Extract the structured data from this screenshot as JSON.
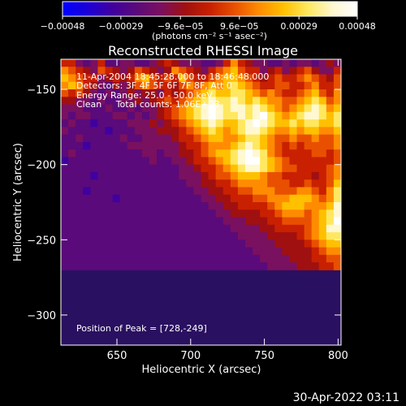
{
  "colorbar": {
    "tick_labels": [
      "−0.00048",
      "−0.00029",
      "−9.6e−05",
      "9.6e−05",
      "0.00029",
      "0.00048"
    ],
    "tick_values": [
      -0.00048,
      -0.00029,
      -9.6e-05,
      9.6e-05,
      0.00029,
      0.00048
    ],
    "range": [
      -0.00048,
      0.00048
    ],
    "units_label": "(photons cm⁻² s⁻¹ asec⁻²)",
    "palette": [
      "#0000ff",
      "#1a00d8",
      "#4000a0",
      "#5a0a7a",
      "#7a1060",
      "#a01010",
      "#c82000",
      "#e85000",
      "#ff8c00",
      "#ffc000",
      "#ffe860",
      "#fff8d0",
      "#ffffff"
    ]
  },
  "header": {
    "date_line": "11-Apr-2004 18:45:28.000 to 18:46:48.000",
    "detectors_line": "Detectors: 3F 4F 5F 6F 7F 8F, Att 0",
    "energy_line": "Energy Range: 25.0 - 50.0 keV",
    "clean_line": "Clean     Total counts: 1.06E+03"
  },
  "peak_label": "Position of Peak = [728,-249]",
  "footer_timestamp": "30-Apr-2022 03:11",
  "chart_data": {
    "type": "heatmap",
    "title": "Reconstructed RHESSI Image",
    "xlabel": "Heliocentric X (arcsec)",
    "ylabel": "Heliocentric Y (arcsec)",
    "xlim": [
      612,
      802
    ],
    "ylim": [
      -320,
      -130
    ],
    "xticks": [
      650,
      700,
      750,
      800
    ],
    "yticks": [
      -150,
      -200,
      -250,
      -300
    ],
    "peak": {
      "x": 728,
      "y": -249
    },
    "grid": false,
    "note_cells": "Pixel values below are coarse colormap indices (0 = darkest blue, 12 = white) read off the image.",
    "pixel_size_arcsec": 5,
    "rows_from_top": [
      [
        6,
        6,
        4,
        3,
        4,
        6,
        3,
        3,
        4,
        4,
        3,
        3,
        4,
        5,
        6,
        5,
        4,
        4,
        4,
        3,
        3,
        4,
        6,
        8,
        6,
        5,
        4,
        4,
        3,
        3,
        4,
        3,
        4,
        4,
        3,
        4,
        5,
        4
      ],
      [
        8,
        7,
        6,
        5,
        4,
        7,
        6,
        5,
        4,
        5,
        7,
        6,
        5,
        4,
        5,
        8,
        7,
        6,
        5,
        4,
        6,
        7,
        8,
        9,
        7,
        6,
        6,
        4,
        5,
        6,
        4,
        5,
        6,
        7,
        5,
        4,
        4,
        6
      ],
      [
        9,
        8,
        7,
        6,
        6,
        4,
        5,
        6,
        5,
        6,
        8,
        9,
        7,
        6,
        7,
        6,
        9,
        7,
        6,
        6,
        7,
        8,
        9,
        9,
        8,
        7,
        6,
        5,
        6,
        7,
        6,
        6,
        7,
        8,
        7,
        6,
        5,
        7
      ],
      [
        8,
        9,
        8,
        6,
        5,
        4,
        3,
        5,
        4,
        5,
        7,
        8,
        7,
        6,
        6,
        5,
        7,
        8,
        7,
        8,
        9,
        8,
        9,
        10,
        9,
        8,
        7,
        6,
        6,
        7,
        7,
        6,
        6,
        7,
        8,
        6,
        6,
        7
      ],
      [
        7,
        6,
        7,
        5,
        4,
        3,
        4,
        3,
        4,
        5,
        4,
        5,
        5,
        4,
        6,
        5,
        6,
        7,
        8,
        9,
        10,
        9,
        9,
        10,
        10,
        9,
        8,
        7,
        8,
        7,
        6,
        6,
        7,
        8,
        9,
        7,
        6,
        8
      ],
      [
        5,
        5,
        4,
        4,
        3,
        4,
        3,
        3,
        4,
        4,
        5,
        4,
        5,
        6,
        7,
        6,
        7,
        8,
        9,
        10,
        11,
        10,
        10,
        11,
        10,
        9,
        10,
        9,
        8,
        8,
        7,
        7,
        8,
        9,
        10,
        9,
        7,
        8
      ],
      [
        4,
        4,
        4,
        3,
        3,
        3,
        4,
        3,
        3,
        4,
        3,
        4,
        4,
        5,
        6,
        7,
        8,
        9,
        10,
        11,
        12,
        11,
        10,
        11,
        11,
        10,
        11,
        10,
        9,
        8,
        7,
        8,
        9,
        10,
        11,
        10,
        8,
        9
      ],
      [
        4,
        3,
        4,
        4,
        3,
        3,
        3,
        4,
        4,
        3,
        4,
        3,
        4,
        5,
        6,
        7,
        8,
        9,
        10,
        11,
        12,
        11,
        10,
        10,
        11,
        10,
        11,
        12,
        10,
        9,
        8,
        9,
        10,
        11,
        11,
        10,
        9,
        10
      ],
      [
        3,
        4,
        3,
        3,
        2,
        3,
        3,
        3,
        3,
        4,
        4,
        4,
        5,
        4,
        5,
        6,
        7,
        8,
        9,
        10,
        11,
        10,
        9,
        9,
        10,
        11,
        12,
        11,
        10,
        9,
        9,
        10,
        9,
        10,
        10,
        9,
        9,
        10
      ],
      [
        4,
        3,
        3,
        3,
        3,
        3,
        2,
        3,
        3,
        3,
        4,
        4,
        4,
        5,
        5,
        5,
        6,
        7,
        8,
        9,
        10,
        9,
        8,
        9,
        10,
        11,
        11,
        10,
        9,
        8,
        8,
        9,
        8,
        9,
        9,
        8,
        8,
        9
      ],
      [
        3,
        3,
        4,
        3,
        3,
        3,
        3,
        3,
        4,
        3,
        3,
        4,
        4,
        4,
        4,
        5,
        6,
        6,
        7,
        8,
        9,
        9,
        8,
        8,
        9,
        10,
        10,
        9,
        8,
        7,
        7,
        8,
        7,
        7,
        8,
        7,
        7,
        8
      ],
      [
        3,
        3,
        3,
        2,
        3,
        3,
        3,
        3,
        3,
        4,
        4,
        4,
        4,
        4,
        4,
        4,
        5,
        6,
        6,
        7,
        8,
        8,
        8,
        9,
        10,
        11,
        10,
        9,
        8,
        7,
        6,
        7,
        6,
        7,
        7,
        7,
        7,
        8
      ],
      [
        3,
        4,
        3,
        3,
        3,
        3,
        3,
        3,
        3,
        3,
        3,
        4,
        4,
        3,
        4,
        4,
        5,
        5,
        6,
        7,
        8,
        9,
        9,
        10,
        11,
        12,
        11,
        10,
        8,
        7,
        6,
        6,
        6,
        6,
        7,
        7,
        6,
        7
      ],
      [
        2,
        3,
        3,
        3,
        3,
        3,
        3,
        3,
        3,
        3,
        3,
        3,
        4,
        3,
        3,
        4,
        4,
        5,
        6,
        6,
        7,
        8,
        9,
        10,
        11,
        12,
        12,
        10,
        9,
        8,
        7,
        6,
        6,
        6,
        6,
        6,
        6,
        7
      ],
      [
        3,
        3,
        3,
        3,
        3,
        3,
        3,
        3,
        3,
        3,
        3,
        3,
        3,
        3,
        3,
        3,
        4,
        4,
        5,
        6,
        6,
        7,
        8,
        9,
        10,
        11,
        11,
        10,
        9,
        8,
        7,
        7,
        6,
        6,
        6,
        6,
        7,
        8
      ],
      [
        3,
        3,
        3,
        3,
        2,
        3,
        3,
        3,
        3,
        3,
        3,
        3,
        3,
        3,
        3,
        3,
        4,
        4,
        4,
        5,
        6,
        7,
        7,
        8,
        9,
        9,
        9,
        8,
        7,
        7,
        6,
        6,
        6,
        6,
        5,
        6,
        7,
        8
      ],
      [
        3,
        3,
        3,
        3,
        3,
        3,
        3,
        3,
        3,
        3,
        3,
        3,
        3,
        3,
        3,
        3,
        3,
        4,
        4,
        5,
        5,
        6,
        6,
        7,
        8,
        8,
        8,
        8,
        7,
        7,
        7,
        6,
        6,
        7,
        6,
        6,
        7,
        9
      ],
      [
        3,
        3,
        3,
        2,
        3,
        3,
        3,
        3,
        3,
        3,
        3,
        3,
        3,
        3,
        3,
        3,
        3,
        3,
        4,
        4,
        5,
        5,
        6,
        6,
        7,
        7,
        8,
        8,
        8,
        7,
        7,
        7,
        8,
        8,
        7,
        6,
        8,
        10
      ],
      [
        3,
        3,
        3,
        3,
        3,
        3,
        3,
        2,
        3,
        3,
        3,
        3,
        3,
        3,
        3,
        3,
        3,
        3,
        3,
        4,
        4,
        5,
        5,
        6,
        6,
        6,
        7,
        7,
        8,
        8,
        8,
        9,
        9,
        9,
        8,
        7,
        8,
        10
      ],
      [
        3,
        3,
        3,
        3,
        3,
        3,
        3,
        3,
        3,
        3,
        3,
        3,
        3,
        3,
        3,
        3,
        3,
        3,
        3,
        3,
        4,
        4,
        5,
        5,
        6,
        6,
        6,
        6,
        7,
        8,
        9,
        9,
        9,
        8,
        8,
        8,
        9,
        11
      ],
      [
        3,
        3,
        3,
        3,
        3,
        3,
        3,
        3,
        3,
        3,
        3,
        3,
        3,
        3,
        3,
        3,
        3,
        3,
        3,
        3,
        3,
        4,
        4,
        5,
        5,
        5,
        5,
        6,
        6,
        7,
        8,
        8,
        8,
        7,
        8,
        9,
        10,
        11
      ],
      [
        3,
        3,
        3,
        3,
        3,
        3,
        3,
        3,
        3,
        3,
        3,
        3,
        3,
        3,
        3,
        3,
        3,
        3,
        3,
        3,
        3,
        3,
        4,
        4,
        4,
        5,
        5,
        5,
        6,
        6,
        7,
        7,
        7,
        7,
        8,
        9,
        10,
        12
      ],
      [
        3,
        3,
        3,
        3,
        3,
        3,
        3,
        3,
        3,
        3,
        3,
        3,
        3,
        3,
        3,
        3,
        3,
        3,
        3,
        3,
        3,
        3,
        3,
        4,
        4,
        4,
        4,
        5,
        5,
        6,
        6,
        6,
        6,
        7,
        8,
        9,
        11,
        11
      ],
      [
        3,
        3,
        3,
        3,
        3,
        3,
        3,
        3,
        3,
        3,
        3,
        3,
        3,
        3,
        3,
        3,
        3,
        3,
        3,
        3,
        3,
        3,
        3,
        3,
        4,
        4,
        4,
        4,
        5,
        5,
        5,
        5,
        6,
        7,
        8,
        9,
        10,
        10
      ],
      [
        3,
        3,
        3,
        3,
        3,
        3,
        3,
        3,
        3,
        3,
        3,
        3,
        3,
        3,
        3,
        3,
        3,
        3,
        3,
        3,
        3,
        3,
        3,
        3,
        3,
        4,
        4,
        4,
        4,
        5,
        5,
        5,
        5,
        6,
        7,
        8,
        9,
        9
      ],
      [
        3,
        3,
        3,
        3,
        3,
        3,
        3,
        3,
        3,
        3,
        3,
        3,
        3,
        3,
        3,
        3,
        3,
        3,
        3,
        3,
        3,
        3,
        3,
        3,
        3,
        3,
        4,
        4,
        4,
        4,
        5,
        5,
        5,
        5,
        6,
        7,
        8,
        8
      ],
      [
        3,
        3,
        3,
        3,
        3,
        3,
        3,
        3,
        3,
        3,
        3,
        3,
        3,
        3,
        3,
        3,
        3,
        3,
        3,
        3,
        3,
        3,
        3,
        3,
        3,
        3,
        3,
        4,
        4,
        4,
        4,
        5,
        5,
        5,
        6,
        6,
        7,
        7
      ],
      [
        3,
        3,
        3,
        3,
        3,
        3,
        3,
        3,
        3,
        3,
        3,
        3,
        3,
        3,
        3,
        3,
        3,
        3,
        3,
        3,
        3,
        3,
        3,
        3,
        3,
        3,
        3,
        3,
        4,
        4,
        4,
        4,
        5,
        5,
        5,
        6,
        6,
        7
      ]
    ]
  }
}
